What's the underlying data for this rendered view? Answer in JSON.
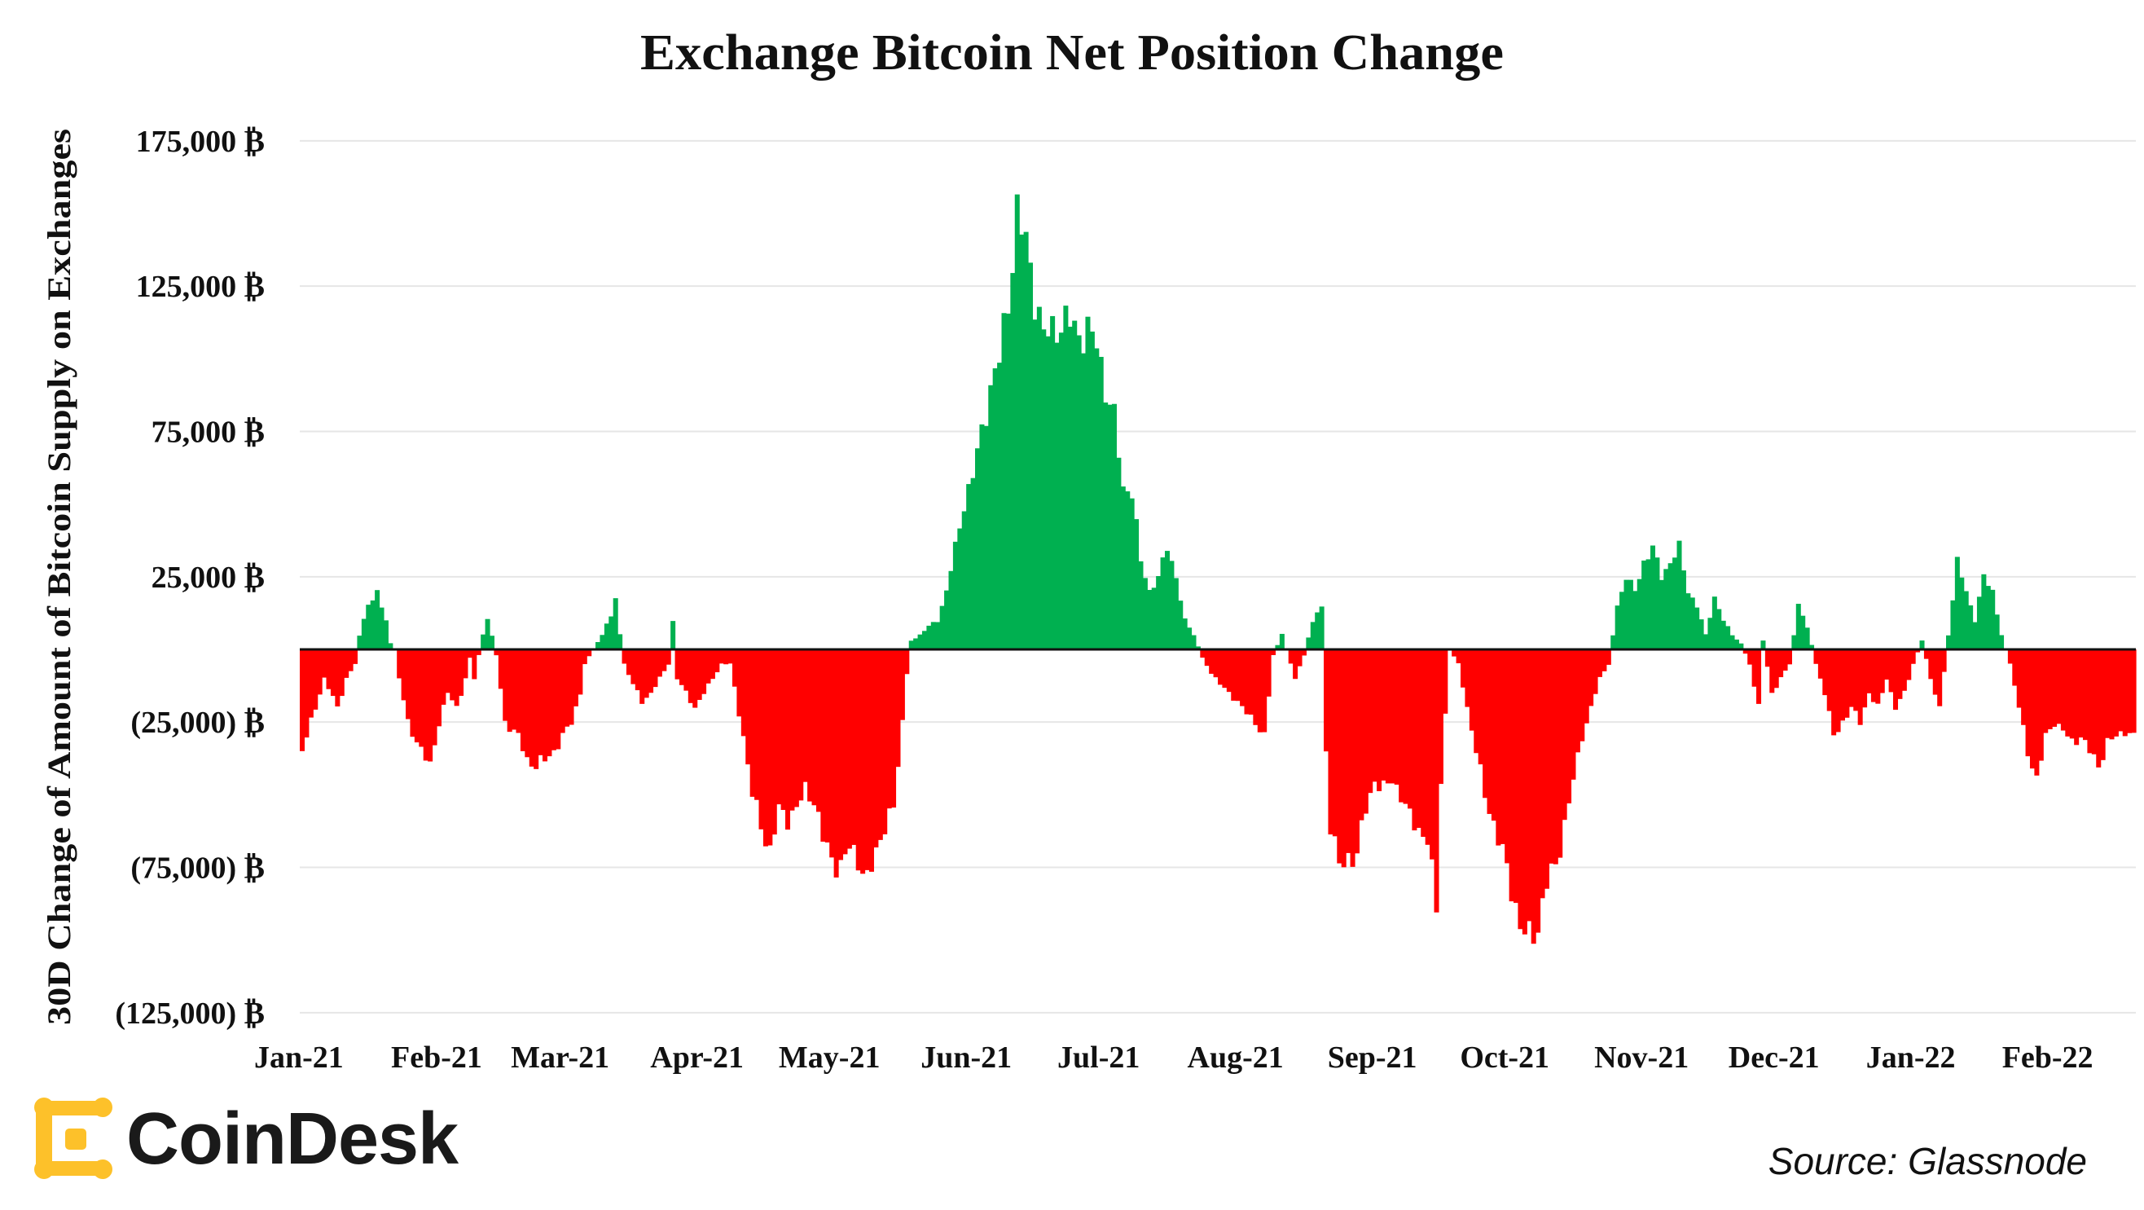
{
  "chart_data": {
    "type": "bar",
    "title": "Exchange Bitcoin Net Position Change",
    "ylabel": "30D Change of Amount of Bitcoin Supply on Exchanges",
    "xlabel": "",
    "ylim": [
      -125000,
      175000
    ],
    "grid": true,
    "y_ticks": [
      {
        "value": 175000,
        "label": "175,000 ₿"
      },
      {
        "value": 125000,
        "label": "125,000 ₿"
      },
      {
        "value": 75000,
        "label": "75,000 ₿"
      },
      {
        "value": 25000,
        "label": "25,000 ₿"
      },
      {
        "value": -25000,
        "label": "(25,000) ₿"
      },
      {
        "value": -75000,
        "label": "(75,000) ₿"
      },
      {
        "value": -125000,
        "label": "(125,000) ₿"
      }
    ],
    "x_ticks": [
      {
        "day": 0,
        "label": "Jan-21"
      },
      {
        "day": 31,
        "label": "Feb-21"
      },
      {
        "day": 59,
        "label": "Mar-21"
      },
      {
        "day": 90,
        "label": "Apr-21"
      },
      {
        "day": 120,
        "label": "May-21"
      },
      {
        "day": 151,
        "label": "Jun-21"
      },
      {
        "day": 181,
        "label": "Jul-21"
      },
      {
        "day": 212,
        "label": "Aug-21"
      },
      {
        "day": 243,
        "label": "Sep-21"
      },
      {
        "day": 273,
        "label": "Oct-21"
      },
      {
        "day": 304,
        "label": "Nov-21"
      },
      {
        "day": 334,
        "label": "Dec-21"
      },
      {
        "day": 365,
        "label": "Jan-22"
      },
      {
        "day": 396,
        "label": "Feb-22"
      }
    ],
    "x_start": "2021-01-01",
    "days_total": 416,
    "anchors": [
      [
        0,
        -35000
      ],
      [
        2,
        -25000
      ],
      [
        5,
        -10000
      ],
      [
        8,
        -20000
      ],
      [
        10,
        -10000
      ],
      [
        12,
        -5000
      ],
      [
        13,
        5000
      ],
      [
        15,
        15000
      ],
      [
        17,
        20000
      ],
      [
        19,
        10000
      ],
      [
        20,
        2000
      ],
      [
        21,
        0
      ],
      [
        22,
        -10000
      ],
      [
        24,
        -25000
      ],
      [
        27,
        -35000
      ],
      [
        29,
        -40000
      ],
      [
        31,
        -25000
      ],
      [
        33,
        -15000
      ],
      [
        35,
        -20000
      ],
      [
        37,
        -10000
      ],
      [
        38,
        -3000
      ],
      [
        39,
        -10000
      ],
      [
        40,
        -2000
      ],
      [
        41,
        5000
      ],
      [
        42,
        10000
      ],
      [
        43,
        5000
      ],
      [
        44,
        -2000
      ],
      [
        46,
        -25000
      ],
      [
        49,
        -30000
      ],
      [
        51,
        -38000
      ],
      [
        53,
        -40000
      ],
      [
        55,
        -38000
      ],
      [
        57,
        -35000
      ],
      [
        59,
        -30000
      ],
      [
        61,
        -25000
      ],
      [
        63,
        -15000
      ],
      [
        64,
        -5000
      ],
      [
        66,
        0
      ],
      [
        68,
        5000
      ],
      [
        70,
        12000
      ],
      [
        71,
        18000
      ],
      [
        72,
        5000
      ],
      [
        73,
        -5000
      ],
      [
        75,
        -12000
      ],
      [
        77,
        -18000
      ],
      [
        79,
        -15000
      ],
      [
        81,
        -10000
      ],
      [
        83,
        -5000
      ],
      [
        84,
        10000
      ],
      [
        85,
        -10000
      ],
      [
        87,
        -15000
      ],
      [
        89,
        -20000
      ],
      [
        91,
        -15000
      ],
      [
        93,
        -10000
      ],
      [
        95,
        -5000
      ],
      [
        97,
        -5000
      ],
      [
        100,
        -30000
      ],
      [
        102,
        -50000
      ],
      [
        104,
        -60000
      ],
      [
        106,
        -70000
      ],
      [
        108,
        -55000
      ],
      [
        110,
        -58000
      ],
      [
        112,
        -55000
      ],
      [
        114,
        -48000
      ],
      [
        116,
        -52000
      ],
      [
        118,
        -65000
      ],
      [
        120,
        -72000
      ],
      [
        122,
        -75000
      ],
      [
        124,
        -68000
      ],
      [
        126,
        -72000
      ],
      [
        128,
        -80000
      ],
      [
        130,
        -70000
      ],
      [
        132,
        -60000
      ],
      [
        134,
        -55000
      ],
      [
        136,
        -25000
      ],
      [
        137,
        -8000
      ],
      [
        138,
        3000
      ],
      [
        140,
        5000
      ],
      [
        142,
        8000
      ],
      [
        144,
        10000
      ],
      [
        146,
        20000
      ],
      [
        148,
        35000
      ],
      [
        150,
        50000
      ],
      [
        152,
        60000
      ],
      [
        154,
        75000
      ],
      [
        156,
        90000
      ],
      [
        158,
        100000
      ],
      [
        160,
        120000
      ],
      [
        162,
        150000
      ],
      [
        164,
        140000
      ],
      [
        166,
        122000
      ],
      [
        168,
        108000
      ],
      [
        170,
        110000
      ],
      [
        172,
        112000
      ],
      [
        174,
        113000
      ],
      [
        176,
        108000
      ],
      [
        178,
        110000
      ],
      [
        180,
        105000
      ],
      [
        182,
        90000
      ],
      [
        184,
        80000
      ],
      [
        186,
        55000
      ],
      [
        188,
        55000
      ],
      [
        190,
        30000
      ],
      [
        192,
        20000
      ],
      [
        194,
        25000
      ],
      [
        196,
        35000
      ],
      [
        198,
        25000
      ],
      [
        200,
        10000
      ],
      [
        202,
        5000
      ],
      [
        204,
        -3000
      ],
      [
        206,
        -8000
      ],
      [
        208,
        -12000
      ],
      [
        210,
        -15000
      ],
      [
        212,
        -18000
      ],
      [
        214,
        -22000
      ],
      [
        216,
        -25000
      ],
      [
        218,
        -30000
      ],
      [
        220,
        -2000
      ],
      [
        222,
        5000
      ],
      [
        224,
        -5000
      ],
      [
        225,
        -10000
      ],
      [
        227,
        -2000
      ],
      [
        229,
        10000
      ],
      [
        231,
        15000
      ],
      [
        232,
        -35000
      ],
      [
        233,
        -60000
      ],
      [
        235,
        -75000
      ],
      [
        237,
        -72000
      ],
      [
        239,
        -70000
      ],
      [
        241,
        -55000
      ],
      [
        243,
        -45000
      ],
      [
        245,
        -48000
      ],
      [
        247,
        -45000
      ],
      [
        249,
        -50000
      ],
      [
        251,
        -58000
      ],
      [
        253,
        -62000
      ],
      [
        255,
        -65000
      ],
      [
        257,
        -90000
      ],
      [
        258,
        -45000
      ],
      [
        260,
        0
      ],
      [
        262,
        -5000
      ],
      [
        264,
        -20000
      ],
      [
        266,
        -35000
      ],
      [
        268,
        -50000
      ],
      [
        270,
        -60000
      ],
      [
        272,
        -70000
      ],
      [
        274,
        -82000
      ],
      [
        276,
        -95000
      ],
      [
        278,
        -100000
      ],
      [
        280,
        -95000
      ],
      [
        282,
        -80000
      ],
      [
        284,
        -75000
      ],
      [
        286,
        -60000
      ],
      [
        288,
        -45000
      ],
      [
        290,
        -30000
      ],
      [
        292,
        -20000
      ],
      [
        294,
        -10000
      ],
      [
        296,
        -5000
      ],
      [
        298,
        15000
      ],
      [
        300,
        25000
      ],
      [
        302,
        20000
      ],
      [
        304,
        30000
      ],
      [
        306,
        35000
      ],
      [
        308,
        25000
      ],
      [
        310,
        30000
      ],
      [
        312,
        35000
      ],
      [
        314,
        20000
      ],
      [
        316,
        15000
      ],
      [
        318,
        5000
      ],
      [
        320,
        18000
      ],
      [
        322,
        10000
      ],
      [
        324,
        5000
      ],
      [
        326,
        2000
      ],
      [
        328,
        -5000
      ],
      [
        330,
        -20000
      ],
      [
        331,
        3000
      ],
      [
        333,
        -15000
      ],
      [
        335,
        -10000
      ],
      [
        337,
        -5000
      ],
      [
        339,
        15000
      ],
      [
        341,
        8000
      ],
      [
        343,
        -5000
      ],
      [
        345,
        -15000
      ],
      [
        347,
        -30000
      ],
      [
        349,
        -25000
      ],
      [
        351,
        -20000
      ],
      [
        353,
        -25000
      ],
      [
        355,
        -15000
      ],
      [
        357,
        -20000
      ],
      [
        359,
        -10000
      ],
      [
        361,
        -20000
      ],
      [
        363,
        -15000
      ],
      [
        365,
        -5000
      ],
      [
        367,
        3000
      ],
      [
        369,
        -10000
      ],
      [
        371,
        -20000
      ],
      [
        373,
        5000
      ],
      [
        375,
        30000
      ],
      [
        377,
        20000
      ],
      [
        379,
        10000
      ],
      [
        381,
        25000
      ],
      [
        383,
        20000
      ],
      [
        385,
        5000
      ],
      [
        387,
        -5000
      ],
      [
        389,
        -20000
      ],
      [
        391,
        -35000
      ],
      [
        393,
        -45000
      ],
      [
        395,
        -30000
      ],
      [
        397,
        -25000
      ],
      [
        399,
        -28000
      ],
      [
        401,
        -32000
      ],
      [
        403,
        -30000
      ],
      [
        405,
        -35000
      ],
      [
        407,
        -40000
      ],
      [
        409,
        -32000
      ],
      [
        411,
        -30000
      ],
      [
        413,
        -28000
      ],
      [
        415,
        -30000
      ]
    ],
    "series": [
      {
        "name": "Net inflow (positive)",
        "color": "#00b050"
      },
      {
        "name": "Net outflow (negative)",
        "color": "#ff0000"
      }
    ]
  },
  "brand": {
    "name": "CoinDesk",
    "icon": "coindesk-logo-icon",
    "color": "#fdc12a"
  },
  "source": "Source: Glassnode"
}
